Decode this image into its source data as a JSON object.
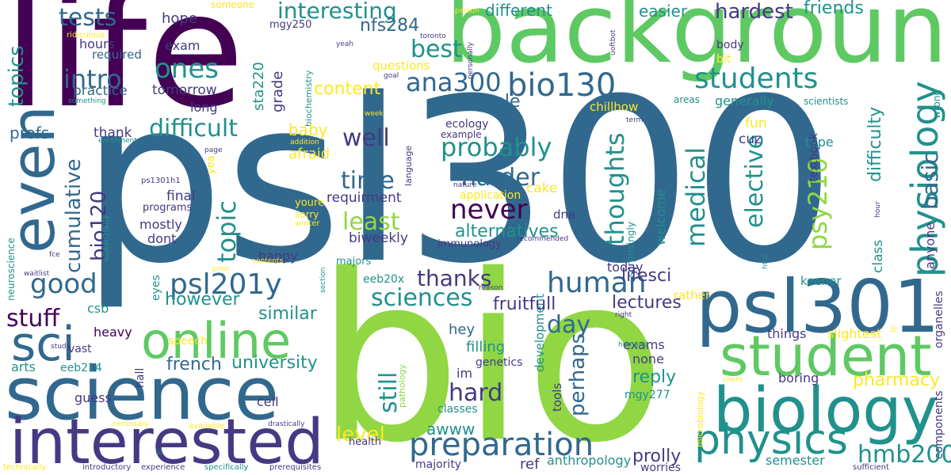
{
  "palette": {
    "deep_purple": "#440154",
    "indigo": "#443a83",
    "blue": "#31688e",
    "teal": "#21918c",
    "green": "#35b779",
    "light_green": "#5ec962",
    "lime": "#90d743",
    "yellow": "#fde725"
  },
  "words": [
    {
      "text": "psl300",
      "c": "blue"
    },
    {
      "text": "bio",
      "c": "lime"
    },
    {
      "text": "life",
      "c": "deep_purple"
    },
    {
      "text": "background",
      "c": "light_green"
    },
    {
      "text": "science",
      "c": "blue"
    },
    {
      "text": "psl301",
      "c": "blue"
    },
    {
      "text": "interested",
      "c": "indigo"
    },
    {
      "text": "biology",
      "c": "teal"
    },
    {
      "text": "student",
      "c": "light_green"
    },
    {
      "text": "online",
      "c": "light_green"
    },
    {
      "text": "even",
      "c": "blue"
    },
    {
      "text": "physics",
      "c": "teal"
    },
    {
      "text": "sci",
      "c": "blue"
    },
    {
      "text": "students",
      "c": "teal"
    },
    {
      "text": "preparation",
      "c": "blue"
    },
    {
      "text": "bio130",
      "c": "blue"
    },
    {
      "text": "human",
      "c": "blue"
    },
    {
      "text": "physiology",
      "c": "teal"
    },
    {
      "text": "psl201y",
      "c": "blue"
    },
    {
      "text": "never",
      "c": "deep_purple"
    },
    {
      "text": "good",
      "c": "blue"
    },
    {
      "text": "difficult",
      "c": "teal"
    },
    {
      "text": "interesting",
      "c": "teal"
    },
    {
      "text": "probably",
      "c": "teal"
    },
    {
      "text": "best",
      "c": "teal"
    },
    {
      "text": "ana300",
      "c": "blue"
    },
    {
      "text": "ones",
      "c": "teal"
    },
    {
      "text": "sciences",
      "c": "teal"
    },
    {
      "text": "tests",
      "c": "blue"
    },
    {
      "text": "intro",
      "c": "blue"
    },
    {
      "text": "topics",
      "c": "teal"
    },
    {
      "text": "hmb200",
      "c": "teal"
    },
    {
      "text": "thoughts",
      "c": "teal"
    },
    {
      "text": "medical",
      "c": "teal"
    },
    {
      "text": "elective",
      "c": "teal"
    },
    {
      "text": "psy210",
      "c": "lime"
    },
    {
      "text": "basic",
      "c": "blue"
    },
    {
      "text": "cumulative",
      "c": "blue"
    },
    {
      "text": "bio120",
      "c": "indigo"
    },
    {
      "text": "topic",
      "c": "teal"
    },
    {
      "text": "stuff",
      "c": "deep_purple"
    },
    {
      "text": "harder",
      "c": "blue"
    },
    {
      "text": "time",
      "c": "blue"
    },
    {
      "text": "least",
      "c": "lime"
    },
    {
      "text": "well",
      "c": "indigo"
    },
    {
      "text": "thanks",
      "c": "indigo"
    },
    {
      "text": "hardest",
      "c": "indigo"
    },
    {
      "text": "friends",
      "c": "teal"
    },
    {
      "text": "easier",
      "c": "teal"
    },
    {
      "text": "different",
      "c": "teal"
    },
    {
      "text": "nfs284",
      "c": "blue"
    },
    {
      "text": "hard",
      "c": "indigo"
    },
    {
      "text": "still",
      "c": "teal"
    },
    {
      "text": "level",
      "c": "yellow"
    },
    {
      "text": "perhaps",
      "c": "blue"
    },
    {
      "text": "day",
      "c": "blue"
    },
    {
      "text": "however",
      "c": "teal"
    },
    {
      "text": "university",
      "c": "teal"
    },
    {
      "text": "french",
      "c": "blue"
    },
    {
      "text": "similar",
      "c": "teal"
    },
    {
      "text": "fruitfull",
      "c": "indigo"
    },
    {
      "text": "lectures",
      "c": "indigo"
    },
    {
      "text": "lifesci",
      "c": "indigo"
    },
    {
      "text": "alternatives",
      "c": "teal"
    },
    {
      "text": "pharmacy",
      "c": "yellow"
    },
    {
      "text": "reply",
      "c": "teal"
    },
    {
      "text": "prolly",
      "c": "indigo"
    },
    {
      "text": "awww",
      "c": "teal"
    },
    {
      "text": "people",
      "c": "blue"
    },
    {
      "text": "content",
      "c": "yellow"
    },
    {
      "text": "hope",
      "c": "indigo"
    },
    {
      "text": "exam",
      "c": "indigo"
    },
    {
      "text": "hours",
      "c": "indigo"
    },
    {
      "text": "required",
      "c": "blue"
    },
    {
      "text": "practice",
      "c": "blue"
    },
    {
      "text": "tomorrow",
      "c": "indigo"
    },
    {
      "text": "long",
      "c": "indigo"
    },
    {
      "text": "profs",
      "c": "blue"
    },
    {
      "text": "thank",
      "c": "indigo"
    },
    {
      "text": "baby",
      "c": "yellow"
    },
    {
      "text": "afraid",
      "c": "yellow"
    },
    {
      "text": "cake",
      "c": "yellow"
    },
    {
      "text": "requirment",
      "c": "indigo"
    },
    {
      "text": "application",
      "c": "yellow"
    },
    {
      "text": "final",
      "c": "indigo"
    },
    {
      "text": "programs",
      "c": "indigo"
    },
    {
      "text": "mostly",
      "c": "indigo"
    },
    {
      "text": "dont",
      "c": "indigo"
    },
    {
      "text": "happy",
      "c": "indigo"
    },
    {
      "text": "biweekly",
      "c": "indigo"
    },
    {
      "text": "immunology",
      "c": "indigo"
    },
    {
      "text": "dna",
      "c": "indigo"
    },
    {
      "text": "today",
      "c": "indigo"
    },
    {
      "text": "welcome",
      "c": "teal"
    },
    {
      "text": "class",
      "c": "teal"
    },
    {
      "text": "anyone",
      "c": "indigo"
    },
    {
      "text": "keener",
      "c": "teal"
    },
    {
      "text": "rather",
      "c": "yellow"
    },
    {
      "text": "things",
      "c": "indigo"
    },
    {
      "text": "slightest",
      "c": "yellow"
    },
    {
      "text": "boring",
      "c": "indigo"
    },
    {
      "text": "components",
      "c": "indigo"
    },
    {
      "text": "organelles",
      "c": "indigo"
    },
    {
      "text": "semester",
      "c": "teal"
    },
    {
      "text": "worries",
      "c": "indigo"
    },
    {
      "text": "anthropology",
      "c": "teal"
    },
    {
      "text": "ref",
      "c": "indigo"
    },
    {
      "text": "majority",
      "c": "indigo"
    },
    {
      "text": "exams",
      "c": "indigo"
    },
    {
      "text": "none",
      "c": "indigo"
    },
    {
      "text": "mgy277",
      "c": "teal"
    },
    {
      "text": "hey",
      "c": "blue"
    },
    {
      "text": "filling",
      "c": "teal"
    },
    {
      "text": "genetics",
      "c": "indigo"
    },
    {
      "text": "im",
      "c": "indigo"
    },
    {
      "text": "development",
      "c": "teal"
    },
    {
      "text": "tools",
      "c": "indigo"
    },
    {
      "text": "classes",
      "c": "teal"
    },
    {
      "text": "pathology",
      "c": "lime"
    },
    {
      "text": "health",
      "c": "indigo"
    },
    {
      "text": "cell",
      "c": "indigo"
    },
    {
      "text": "guess",
      "c": "indigo"
    },
    {
      "text": "eeb214",
      "c": "teal"
    },
    {
      "text": "arts",
      "c": "teal"
    },
    {
      "text": "vast",
      "c": "indigo"
    },
    {
      "text": "heavy",
      "c": "deep_purple"
    },
    {
      "text": "csb",
      "c": "teal"
    },
    {
      "text": "eyes",
      "c": "teal"
    },
    {
      "text": "speech",
      "c": "yellow"
    },
    {
      "text": "hall",
      "c": "indigo"
    },
    {
      "text": "eeb20x",
      "c": "teal"
    },
    {
      "text": "majors",
      "c": "teal"
    },
    {
      "text": "grade",
      "c": "indigo"
    },
    {
      "text": "sta220",
      "c": "teal"
    },
    {
      "text": "questions",
      "c": "yellow"
    },
    {
      "text": "mgy250",
      "c": "indigo"
    },
    {
      "text": "someone",
      "c": "yellow"
    },
    {
      "text": "chillhow",
      "c": "yellow"
    },
    {
      "text": "ecology",
      "c": "indigo"
    },
    {
      "text": "example",
      "c": "indigo"
    },
    {
      "text": "language",
      "c": "indigo"
    },
    {
      "text": "youre",
      "c": "yellow"
    },
    {
      "text": "sorry",
      "c": "yellow"
    },
    {
      "text": "winter",
      "c": "yellow"
    },
    {
      "text": "nature",
      "c": "indigo"
    },
    {
      "text": "recommended",
      "c": "indigo"
    },
    {
      "text": "fun",
      "c": "yellow"
    },
    {
      "text": "cuz",
      "c": "indigo"
    },
    {
      "text": "type",
      "c": "teal"
    },
    {
      "text": "textbook",
      "c": "indigo"
    },
    {
      "text": "difficulty",
      "c": "teal"
    },
    {
      "text": "generally",
      "c": "teal"
    },
    {
      "text": "body",
      "c": "indigo"
    },
    {
      "text": "bit",
      "c": "yellow"
    },
    {
      "text": "areas",
      "c": "teal"
    },
    {
      "text": "scientists",
      "c": "teal"
    },
    {
      "text": "wrong",
      "c": "teal"
    },
    {
      "text": "surprisingly",
      "c": "teal"
    },
    {
      "text": "uoftbot",
      "c": "indigo"
    },
    {
      "text": "personally",
      "c": "indigo"
    },
    {
      "text": "toronto",
      "c": "indigo"
    },
    {
      "text": "yeah",
      "c": "indigo"
    },
    {
      "text": "person",
      "c": "yellow"
    },
    {
      "text": "goal",
      "c": "indigo"
    },
    {
      "text": "week",
      "c": "yellow"
    },
    {
      "text": "term",
      "c": "indigo"
    },
    {
      "text": "biochemistry",
      "c": "teal"
    },
    {
      "text": "ridiculous",
      "c": "yellow"
    },
    {
      "text": "something",
      "c": "teal"
    },
    {
      "text": "enrollment",
      "c": "teal"
    },
    {
      "text": "addition",
      "c": "yellow"
    },
    {
      "text": "page",
      "c": "indigo"
    },
    {
      "text": "ps1301h1",
      "c": "indigo"
    },
    {
      "text": "yea",
      "c": "yellow"
    },
    {
      "text": "neuroscience",
      "c": "teal"
    },
    {
      "text": "essentially",
      "c": "teal"
    },
    {
      "text": "fce",
      "c": "indigo"
    },
    {
      "text": "waitlist",
      "c": "indigo"
    },
    {
      "text": "contents",
      "c": "yellow"
    },
    {
      "text": "prior",
      "c": "yellow"
    },
    {
      "text": "section",
      "c": "teal"
    },
    {
      "text": "reason",
      "c": "indigo"
    },
    {
      "text": "study",
      "c": "indigo"
    },
    {
      "text": "right",
      "c": "indigo"
    },
    {
      "text": "humans",
      "c": "teal"
    },
    {
      "text": "chem",
      "c": "yellow"
    },
    {
      "text": "http",
      "c": "teal"
    },
    {
      "text": "hour",
      "c": "indigo"
    },
    {
      "text": "br",
      "c": "yellow"
    },
    {
      "text": "microbiology",
      "c": "yellow"
    },
    {
      "text": "sufficient",
      "c": "indigo"
    },
    {
      "text": "necessary",
      "c": "yellow"
    },
    {
      "text": "available",
      "c": "yellow"
    },
    {
      "text": "drastically",
      "c": "indigo"
    },
    {
      "text": "hi",
      "c": "teal"
    },
    {
      "text": "technically",
      "c": "yellow"
    },
    {
      "text": "introductory",
      "c": "indigo"
    },
    {
      "text": "experience",
      "c": "indigo"
    },
    {
      "text": "specifically",
      "c": "teal"
    },
    {
      "text": "prerequisites",
      "c": "indigo"
    }
  ]
}
